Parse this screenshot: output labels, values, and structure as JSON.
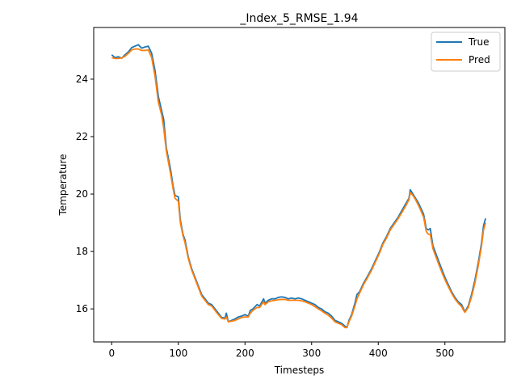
{
  "chart_data": {
    "type": "line",
    "title": "_Index_5_RMSE_1.94",
    "xlabel": "Timesteps",
    "ylabel": "Temperature",
    "xlim": [
      -27,
      590
    ],
    "ylim": [
      14.85,
      25.8
    ],
    "xticks": [
      0,
      100,
      200,
      300,
      400,
      500
    ],
    "yticks": [
      16,
      18,
      20,
      22,
      24
    ],
    "grid": false,
    "legend_position": "top-right",
    "series": [
      {
        "name": "True",
        "color": "#1f77b4",
        "points": [
          [
            0,
            24.85
          ],
          [
            5,
            24.75
          ],
          [
            10,
            24.78
          ],
          [
            15,
            24.73
          ],
          [
            20,
            24.85
          ],
          [
            25,
            24.95
          ],
          [
            30,
            25.1
          ],
          [
            35,
            25.15
          ],
          [
            40,
            25.2
          ],
          [
            45,
            25.08
          ],
          [
            50,
            25.12
          ],
          [
            55,
            25.15
          ],
          [
            60,
            24.9
          ],
          [
            65,
            24.3
          ],
          [
            70,
            23.4
          ],
          [
            75,
            22.9
          ],
          [
            78,
            22.6
          ],
          [
            82,
            21.6
          ],
          [
            88,
            20.9
          ],
          [
            92,
            20.3
          ],
          [
            95,
            19.95
          ],
          [
            100,
            19.9
          ],
          [
            103,
            19.1
          ],
          [
            107,
            18.6
          ],
          [
            110,
            18.4
          ],
          [
            115,
            17.8
          ],
          [
            120,
            17.4
          ],
          [
            125,
            17.1
          ],
          [
            130,
            16.8
          ],
          [
            135,
            16.5
          ],
          [
            140,
            16.35
          ],
          [
            145,
            16.2
          ],
          [
            150,
            16.15
          ],
          [
            155,
            16.0
          ],
          [
            160,
            15.85
          ],
          [
            165,
            15.7
          ],
          [
            170,
            15.68
          ],
          [
            172,
            15.85
          ],
          [
            175,
            15.55
          ],
          [
            180,
            15.6
          ],
          [
            185,
            15.65
          ],
          [
            190,
            15.72
          ],
          [
            195,
            15.75
          ],
          [
            200,
            15.8
          ],
          [
            205,
            15.75
          ],
          [
            208,
            15.95
          ],
          [
            212,
            16.0
          ],
          [
            218,
            16.15
          ],
          [
            222,
            16.1
          ],
          [
            228,
            16.35
          ],
          [
            230,
            16.2
          ],
          [
            235,
            16.3
          ],
          [
            240,
            16.35
          ],
          [
            245,
            16.35
          ],
          [
            250,
            16.4
          ],
          [
            255,
            16.42
          ],
          [
            260,
            16.4
          ],
          [
            265,
            16.35
          ],
          [
            270,
            16.38
          ],
          [
            275,
            16.35
          ],
          [
            280,
            16.38
          ],
          [
            285,
            16.35
          ],
          [
            290,
            16.3
          ],
          [
            295,
            16.25
          ],
          [
            300,
            16.2
          ],
          [
            305,
            16.15
          ],
          [
            310,
            16.05
          ],
          [
            315,
            16.0
          ],
          [
            320,
            15.9
          ],
          [
            325,
            15.85
          ],
          [
            330,
            15.75
          ],
          [
            335,
            15.6
          ],
          [
            340,
            15.55
          ],
          [
            345,
            15.5
          ],
          [
            350,
            15.4
          ],
          [
            353,
            15.35
          ],
          [
            356,
            15.6
          ],
          [
            360,
            15.8
          ],
          [
            365,
            16.2
          ],
          [
            368,
            16.5
          ],
          [
            372,
            16.6
          ],
          [
            378,
            16.9
          ],
          [
            383,
            17.1
          ],
          [
            390,
            17.4
          ],
          [
            396,
            17.7
          ],
          [
            402,
            18.0
          ],
          [
            407,
            18.3
          ],
          [
            412,
            18.5
          ],
          [
            418,
            18.8
          ],
          [
            424,
            19.0
          ],
          [
            430,
            19.2
          ],
          [
            436,
            19.45
          ],
          [
            441,
            19.65
          ],
          [
            446,
            19.85
          ],
          [
            448,
            20.15
          ],
          [
            452,
            20.0
          ],
          [
            456,
            19.85
          ],
          [
            460,
            19.7
          ],
          [
            464,
            19.5
          ],
          [
            468,
            19.3
          ],
          [
            472,
            18.8
          ],
          [
            475,
            18.75
          ],
          [
            478,
            18.8
          ],
          [
            482,
            18.2
          ],
          [
            486,
            17.95
          ],
          [
            490,
            17.7
          ],
          [
            495,
            17.4
          ],
          [
            500,
            17.1
          ],
          [
            505,
            16.85
          ],
          [
            510,
            16.6
          ],
          [
            515,
            16.4
          ],
          [
            520,
            16.25
          ],
          [
            525,
            16.15
          ],
          [
            528,
            16.0
          ],
          [
            530,
            15.9
          ],
          [
            535,
            16.1
          ],
          [
            540,
            16.5
          ],
          [
            545,
            17.0
          ],
          [
            550,
            17.6
          ],
          [
            555,
            18.3
          ],
          [
            558,
            18.9
          ],
          [
            561,
            19.15
          ]
        ]
      },
      {
        "name": "Pred",
        "color": "#ff7f0e",
        "points": [
          [
            0,
            24.75
          ],
          [
            5,
            24.72
          ],
          [
            10,
            24.72
          ],
          [
            15,
            24.74
          ],
          [
            20,
            24.8
          ],
          [
            25,
            24.9
          ],
          [
            30,
            25.02
          ],
          [
            35,
            25.05
          ],
          [
            40,
            25.05
          ],
          [
            45,
            25.0
          ],
          [
            50,
            25.0
          ],
          [
            55,
            25.02
          ],
          [
            60,
            24.75
          ],
          [
            65,
            24.1
          ],
          [
            70,
            23.2
          ],
          [
            75,
            22.75
          ],
          [
            78,
            22.3
          ],
          [
            82,
            21.5
          ],
          [
            88,
            20.75
          ],
          [
            92,
            20.2
          ],
          [
            95,
            19.85
          ],
          [
            100,
            19.75
          ],
          [
            103,
            19.0
          ],
          [
            107,
            18.55
          ],
          [
            110,
            18.3
          ],
          [
            115,
            17.75
          ],
          [
            120,
            17.35
          ],
          [
            125,
            17.05
          ],
          [
            130,
            16.75
          ],
          [
            135,
            16.45
          ],
          [
            140,
            16.3
          ],
          [
            145,
            16.15
          ],
          [
            150,
            16.1
          ],
          [
            155,
            15.95
          ],
          [
            160,
            15.8
          ],
          [
            165,
            15.67
          ],
          [
            170,
            15.65
          ],
          [
            172,
            15.72
          ],
          [
            175,
            15.55
          ],
          [
            180,
            15.57
          ],
          [
            185,
            15.6
          ],
          [
            190,
            15.65
          ],
          [
            195,
            15.7
          ],
          [
            200,
            15.72
          ],
          [
            205,
            15.72
          ],
          [
            208,
            15.85
          ],
          [
            212,
            15.95
          ],
          [
            218,
            16.05
          ],
          [
            222,
            16.05
          ],
          [
            228,
            16.25
          ],
          [
            230,
            16.15
          ],
          [
            235,
            16.25
          ],
          [
            240,
            16.28
          ],
          [
            245,
            16.3
          ],
          [
            250,
            16.32
          ],
          [
            255,
            16.33
          ],
          [
            260,
            16.33
          ],
          [
            265,
            16.3
          ],
          [
            270,
            16.3
          ],
          [
            275,
            16.3
          ],
          [
            280,
            16.3
          ],
          [
            285,
            16.28
          ],
          [
            290,
            16.25
          ],
          [
            295,
            16.2
          ],
          [
            300,
            16.15
          ],
          [
            305,
            16.08
          ],
          [
            310,
            16.0
          ],
          [
            315,
            15.93
          ],
          [
            320,
            15.85
          ],
          [
            325,
            15.78
          ],
          [
            330,
            15.68
          ],
          [
            335,
            15.55
          ],
          [
            340,
            15.5
          ],
          [
            345,
            15.45
          ],
          [
            350,
            15.35
          ],
          [
            353,
            15.35
          ],
          [
            356,
            15.55
          ],
          [
            360,
            15.75
          ],
          [
            365,
            16.1
          ],
          [
            368,
            16.35
          ],
          [
            372,
            16.55
          ],
          [
            378,
            16.85
          ],
          [
            383,
            17.05
          ],
          [
            390,
            17.35
          ],
          [
            396,
            17.65
          ],
          [
            402,
            17.95
          ],
          [
            407,
            18.25
          ],
          [
            412,
            18.45
          ],
          [
            418,
            18.75
          ],
          [
            424,
            18.95
          ],
          [
            430,
            19.15
          ],
          [
            436,
            19.38
          ],
          [
            441,
            19.58
          ],
          [
            446,
            19.8
          ],
          [
            448,
            20.05
          ],
          [
            452,
            19.95
          ],
          [
            456,
            19.8
          ],
          [
            460,
            19.62
          ],
          [
            464,
            19.42
          ],
          [
            468,
            19.2
          ],
          [
            472,
            18.7
          ],
          [
            475,
            18.6
          ],
          [
            478,
            18.6
          ],
          [
            482,
            18.1
          ],
          [
            486,
            17.85
          ],
          [
            490,
            17.6
          ],
          [
            495,
            17.3
          ],
          [
            500,
            17.02
          ],
          [
            505,
            16.78
          ],
          [
            510,
            16.55
          ],
          [
            515,
            16.35
          ],
          [
            520,
            16.2
          ],
          [
            525,
            16.08
          ],
          [
            528,
            15.95
          ],
          [
            530,
            15.88
          ],
          [
            535,
            16.05
          ],
          [
            540,
            16.42
          ],
          [
            545,
            16.9
          ],
          [
            550,
            17.5
          ],
          [
            555,
            18.2
          ],
          [
            558,
            18.75
          ],
          [
            561,
            19.0
          ]
        ]
      }
    ]
  }
}
